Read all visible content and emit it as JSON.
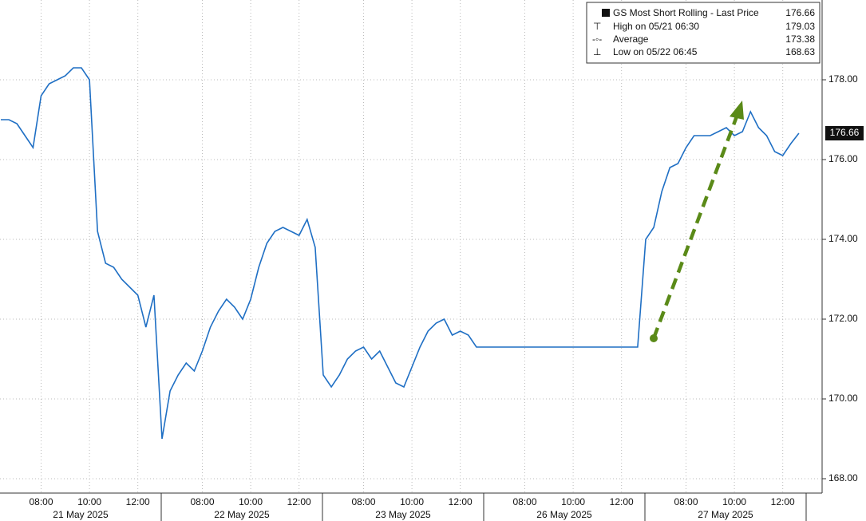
{
  "chart_data": {
    "type": "line",
    "days": [
      "21 May 2025",
      "22 May 2025",
      "23 May 2025",
      "26 May 2025",
      "27 May 2025"
    ],
    "categories": [
      null,
      null,
      null,
      null,
      null,
      "08:00",
      null,
      null,
      null,
      null,
      null,
      "10:00",
      null,
      null,
      null,
      null,
      null,
      "12:00",
      null,
      null,
      null,
      null,
      null,
      null,
      null,
      "08:00",
      null,
      null,
      null,
      null,
      null,
      "10:00",
      null,
      null,
      null,
      null,
      null,
      "12:00",
      null,
      null,
      null,
      null,
      null,
      null,
      null,
      "08:00",
      null,
      null,
      null,
      null,
      null,
      "10:00",
      null,
      null,
      null,
      null,
      null,
      "12:00",
      null,
      null,
      null,
      null,
      null,
      null,
      null,
      "08:00",
      null,
      null,
      null,
      null,
      null,
      "10:00",
      null,
      null,
      null,
      null,
      null,
      "12:00",
      null,
      null,
      null,
      null,
      null,
      null,
      null,
      "08:00",
      null,
      null,
      null,
      null,
      null,
      "10:00",
      null,
      null,
      null,
      null,
      null,
      "12:00",
      null,
      null
    ],
    "series": [
      {
        "name": "GS Most Short Rolling - Last Price",
        "color": "#1f6fc4",
        "values": [
          177.0,
          177.0,
          176.9,
          176.6,
          176.3,
          177.6,
          177.9,
          178.0,
          178.1,
          178.3,
          178.3,
          178.0,
          174.2,
          173.4,
          173.3,
          173.0,
          172.8,
          172.6,
          171.8,
          172.6,
          169.0,
          170.2,
          170.6,
          170.9,
          170.7,
          171.2,
          171.8,
          172.2,
          172.5,
          172.3,
          172.0,
          172.5,
          173.3,
          173.9,
          174.2,
          174.3,
          174.2,
          174.1,
          174.5,
          173.8,
          170.6,
          170.3,
          170.6,
          171.0,
          171.2,
          171.3,
          171.0,
          171.2,
          170.8,
          170.4,
          170.3,
          170.8,
          171.3,
          171.7,
          171.9,
          172.0,
          171.6,
          171.7,
          171.6,
          171.3,
          171.3,
          171.3,
          171.3,
          171.3,
          171.3,
          171.3,
          171.3,
          171.3,
          171.3,
          171.3,
          171.3,
          171.3,
          171.3,
          171.3,
          171.3,
          171.3,
          171.3,
          171.3,
          171.3,
          171.3,
          174.0,
          174.3,
          175.2,
          175.8,
          175.9,
          176.3,
          176.6,
          176.6,
          176.6,
          176.7,
          176.8,
          176.6,
          176.7,
          177.2,
          176.8,
          176.6,
          176.2,
          176.1,
          176.4,
          176.66
        ]
      }
    ],
    "last_price": 176.66,
    "legend_stats": [
      {
        "label": "High on 05/21 06:30",
        "value": 179.03
      },
      {
        "label": "Average",
        "value": 173.38
      },
      {
        "label": "Low on 05/22 06:45",
        "value": 168.63
      }
    ],
    "ylim": [
      167.64,
      180
    ],
    "yticks": [
      {
        "value": 168,
        "label": "168.00"
      },
      {
        "value": 170,
        "label": "170.00"
      },
      {
        "value": 172,
        "label": "172.00"
      },
      {
        "value": 174,
        "label": "174.00"
      },
      {
        "value": 176,
        "label": "176.00"
      },
      {
        "value": 178,
        "label": "178.00"
      }
    ],
    "grid": true
  }
}
